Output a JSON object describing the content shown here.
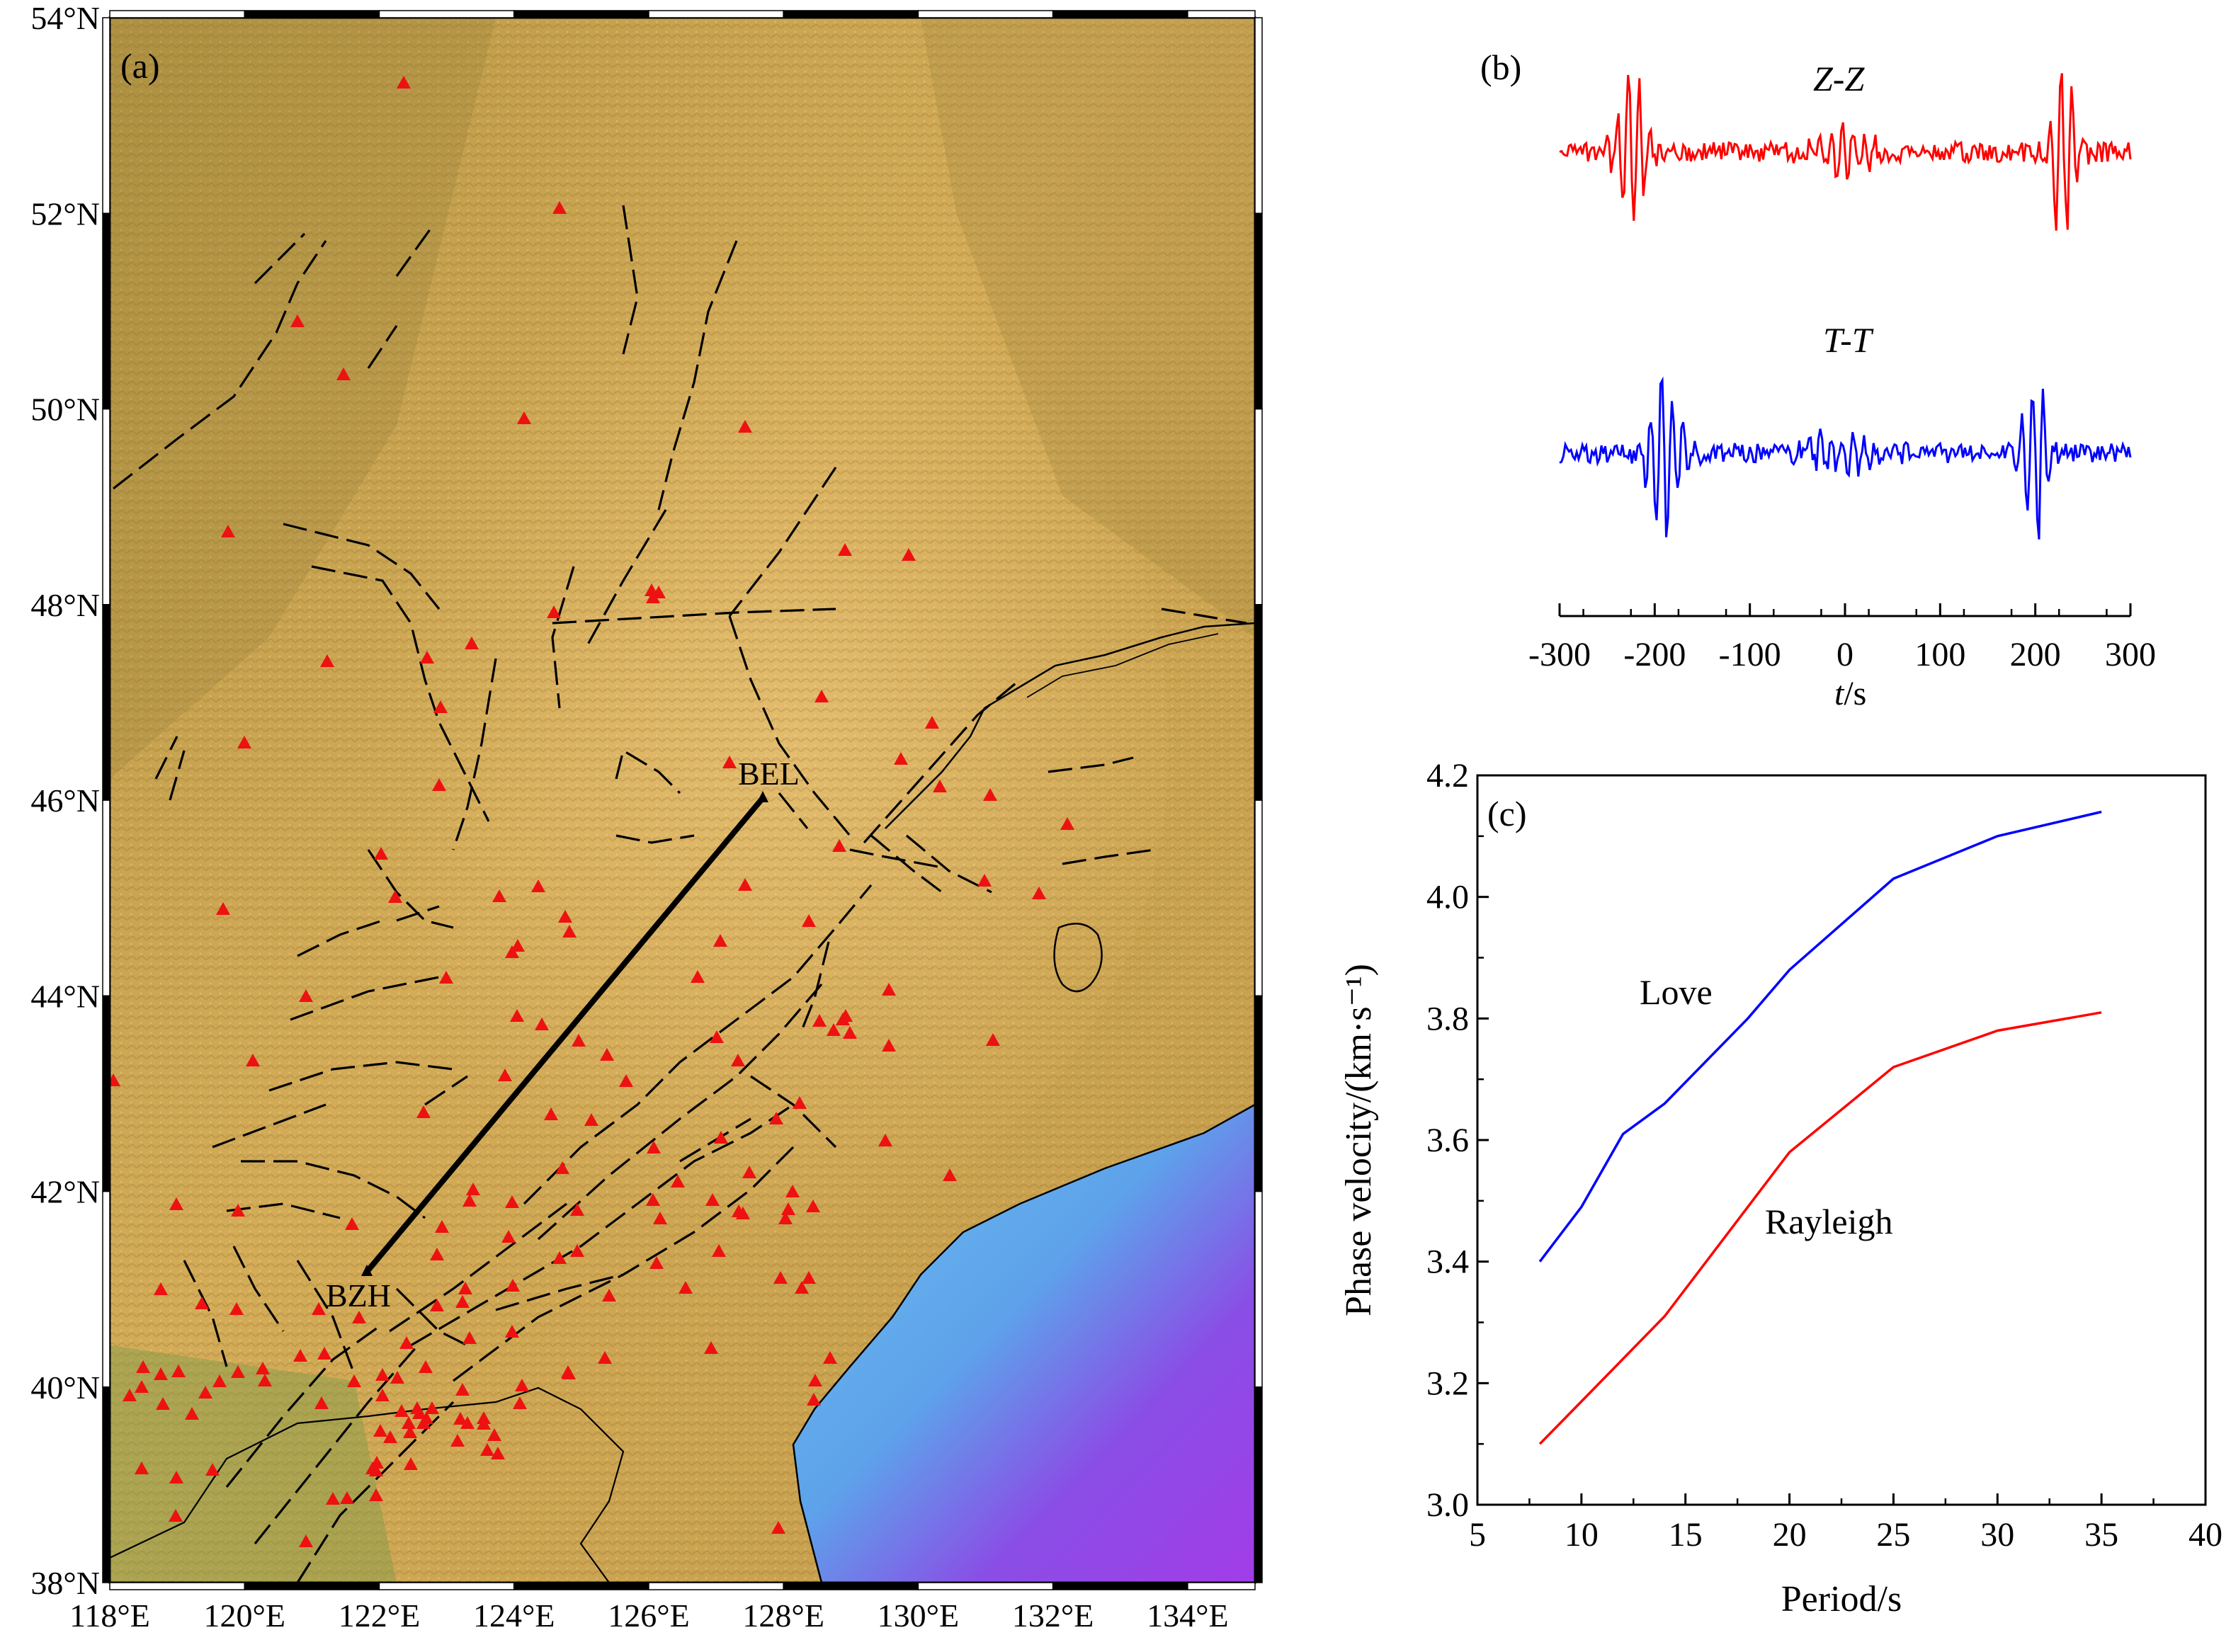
{
  "panel_a": {
    "label": "(a)",
    "lon_ticks": [
      "118°E",
      "120°E",
      "122°E",
      "124°E",
      "126°E",
      "128°E",
      "130°E",
      "132°E",
      "134°E"
    ],
    "lat_ticks": [
      "38°N",
      "40°N",
      "42°N",
      "44°N",
      "46°N",
      "48°N",
      "50°N",
      "52°N",
      "54°N"
    ],
    "stations": [
      {
        "name": "BEL",
        "lon": 127.6,
        "lat": 46.6
      },
      {
        "name": "BZH",
        "lon": 121.6,
        "lat": 41.6
      }
    ],
    "colors": {
      "land": "#c9a24c",
      "land_dark": "#a88a3c",
      "sea_shallow": "#6fb4e6",
      "sea_deep": "#9e3fe6",
      "stations": "#ee1111",
      "faults": "#000000"
    },
    "icons": [
      "triangle-station-icon",
      "fault-line-icon"
    ]
  },
  "panel_b": {
    "label": "(b)",
    "traces": [
      {
        "name": "Z-Z",
        "color": "#ff0000"
      },
      {
        "name": "T-T",
        "color": "#0000ff"
      }
    ],
    "xticks": [
      "-300",
      "-200",
      "-100",
      "0",
      "100",
      "200",
      "300"
    ],
    "xlabel_italic": "t",
    "xlabel_rest": "/s"
  },
  "panel_c": {
    "label": "(c)"
  },
  "chart_data": {
    "type": "line",
    "xlabel": "Period/s",
    "ylabel": "Phase velocity/(km·s⁻¹)",
    "xlim": [
      5,
      40
    ],
    "ylim": [
      3.0,
      4.2
    ],
    "xticks": [
      "5",
      "10",
      "15",
      "20",
      "25",
      "30",
      "35",
      "40"
    ],
    "yticks": [
      "3.0",
      "3.2",
      "3.4",
      "3.6",
      "3.8",
      "4.0",
      "4.2"
    ],
    "series": [
      {
        "name": "Love",
        "color": "#0000ff",
        "x": [
          8,
          10,
          12,
          14,
          16,
          18,
          20,
          25,
          30,
          35
        ],
        "values": [
          3.4,
          3.49,
          3.61,
          3.66,
          3.73,
          3.8,
          3.88,
          4.03,
          4.1,
          4.14
        ]
      },
      {
        "name": "Rayleigh",
        "color": "#ff0000",
        "x": [
          8,
          10,
          12,
          14,
          16,
          18,
          20,
          25,
          30,
          35
        ],
        "values": [
          3.1,
          3.17,
          3.24,
          3.31,
          3.4,
          3.49,
          3.58,
          3.72,
          3.78,
          3.81
        ]
      }
    ]
  }
}
